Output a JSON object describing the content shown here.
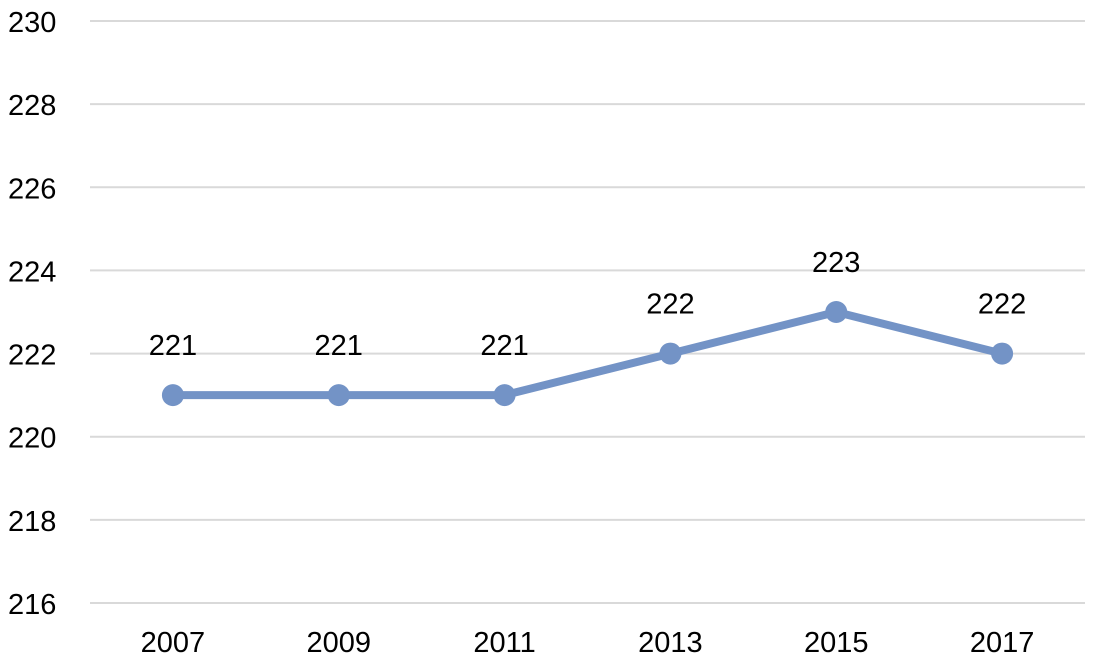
{
  "chart_data": {
    "type": "line",
    "title": "",
    "xlabel": "",
    "ylabel": "",
    "categories": [
      "2007",
      "2009",
      "2011",
      "2013",
      "2015",
      "2017"
    ],
    "series": [
      {
        "values": [
          221,
          221,
          221,
          222,
          223,
          222
        ],
        "color": "#7393c6"
      }
    ],
    "ylim": [
      216,
      230
    ],
    "yticks": [
      "216",
      "218",
      "220",
      "222",
      "224",
      "226",
      "228",
      "230"
    ],
    "data_labels": [
      "221",
      "221",
      "221",
      "222",
      "223",
      "222"
    ],
    "grid": true,
    "legend": "none"
  }
}
